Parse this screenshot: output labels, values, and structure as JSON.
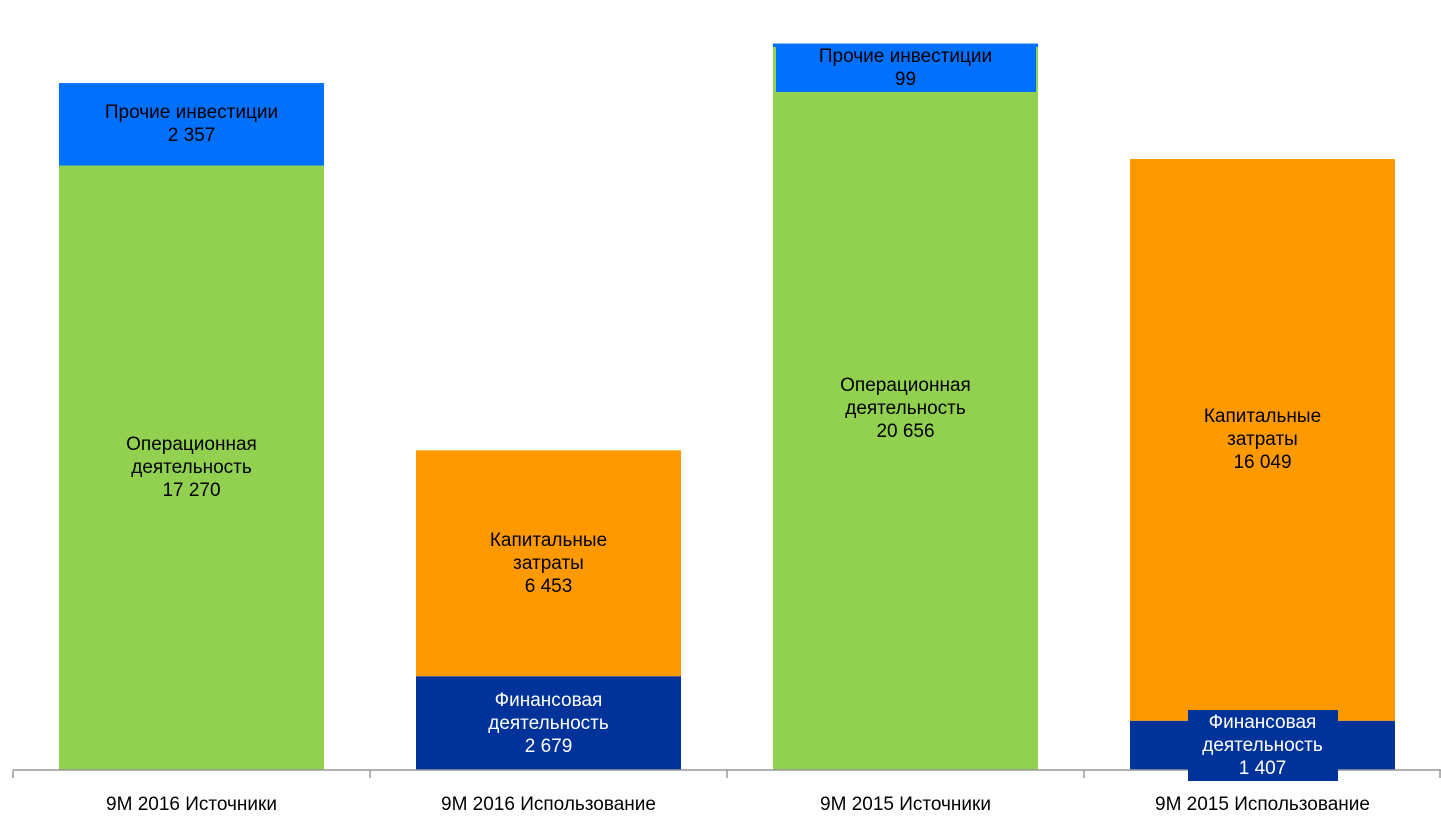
{
  "chart_data": {
    "type": "stacked_bar",
    "categories": [
      "9M 2016 Источники",
      "9M 2016 Использование",
      "9M 2015 Источники",
      "9M 2015 Использование"
    ],
    "series": [
      {
        "name": "Финансовая деятельность",
        "color": "#003399",
        "values": [
          null,
          2679,
          null,
          1407
        ],
        "value_labels": [
          null,
          "2 679",
          null,
          "1 407"
        ]
      },
      {
        "name": "Операционная деятельность",
        "color": "#92d050",
        "values": [
          17270,
          null,
          20656,
          null
        ],
        "value_labels": [
          "17 270",
          null,
          "20 656",
          null
        ]
      },
      {
        "name": "Капитальные затраты",
        "color": "#ff9900",
        "values": [
          null,
          6453,
          null,
          16049
        ],
        "value_labels": [
          null,
          "6 453",
          null,
          "16 049"
        ]
      },
      {
        "name": "Прочие инвестиции",
        "color": "#0070ff",
        "values": [
          2357,
          null,
          99,
          null
        ],
        "value_labels": [
          "2 357",
          null,
          "99",
          null
        ]
      }
    ],
    "ylim": [
      0,
      22000
    ]
  }
}
